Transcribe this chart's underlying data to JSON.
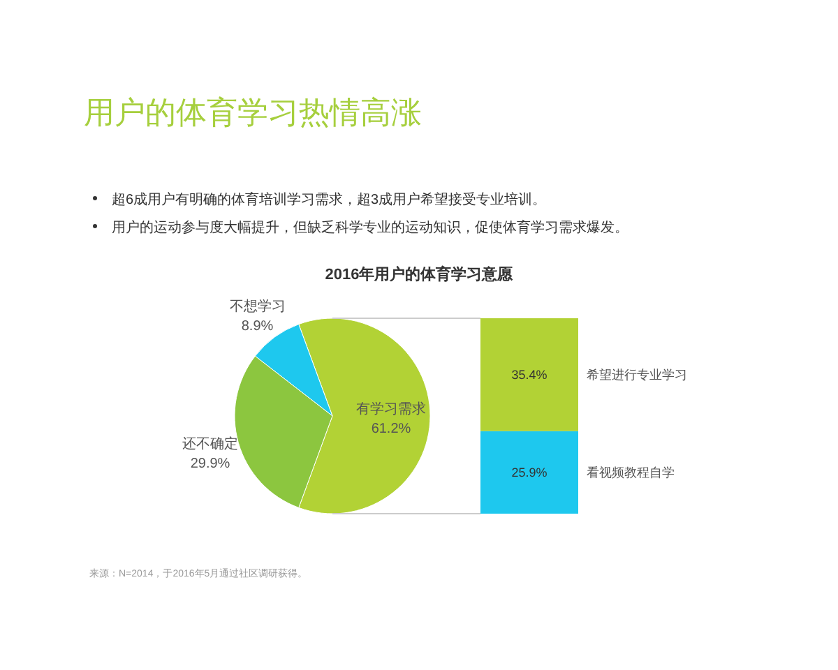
{
  "chart_data": [
    {
      "type": "pie",
      "title": "用户的体育学习热情高涨",
      "subtitle": "2016年用户的体育学习意愿",
      "categories": [
        "有学习需求",
        "不想学习",
        "还不确定"
      ],
      "values": [
        61.2,
        8.9,
        29.9
      ],
      "colors": [
        "#b2d235",
        "#1ec8ee",
        "#8cc63f"
      ],
      "value_labels": [
        "61.2%",
        "8.9%",
        "29.9%"
      ],
      "annotations": [
        "超6成用户有明确的体育培训学习需求，超3成用户希望接受专业培训。",
        "用户的运动参与度大幅提升，但缺乏科学专业的运动知识，促使体育学习需求爆发。",
        "来源：N=2014，于2016年5月通过社区调研获得。"
      ]
    },
    {
      "type": "bar",
      "stacked": true,
      "categories": [
        null
      ],
      "series": [
        {
          "name": "看视频教程自学",
          "color": "#1ec8ee",
          "values": [
            25.9
          ],
          "value_labels": [
            "25.9%"
          ]
        },
        {
          "name": "希望进行专业学习",
          "color": "#b2d235",
          "values": [
            35.4
          ],
          "value_labels": [
            "35.4%"
          ]
        }
      ]
    }
  ]
}
